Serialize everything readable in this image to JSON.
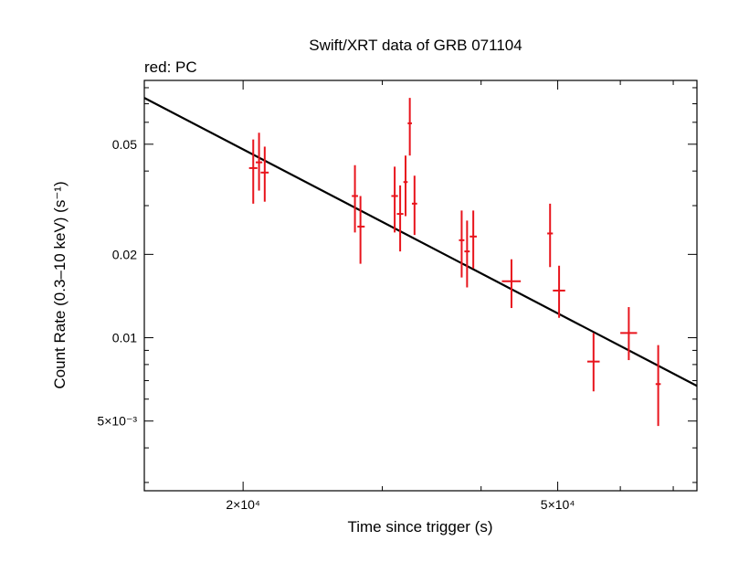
{
  "chart_data": {
    "type": "scatter",
    "title": "Swift/XRT data of GRB 071104",
    "subtitle": "red: PC",
    "xlabel": "Time since trigger (s)",
    "ylabel": "Count Rate (0.3–10 keV) (s⁻¹)",
    "x_scale": "log",
    "y_scale": "log",
    "xlim": [
      15000,
      75000
    ],
    "ylim": [
      0.0028,
      0.085
    ],
    "grid": false,
    "x_ticks": [
      {
        "value": 20000,
        "label": "2×10⁴"
      },
      {
        "value": 50000,
        "label": "5×10⁴"
      }
    ],
    "y_ticks": [
      {
        "value": 0.005,
        "label": "5×10⁻³"
      },
      {
        "value": 0.01,
        "label": "0.01"
      },
      {
        "value": 0.02,
        "label": "0.02"
      },
      {
        "value": 0.05,
        "label": "0.05"
      }
    ],
    "series": [
      {
        "color": "#e8141c",
        "points": [
          {
            "x": 20600,
            "xlo": 20350,
            "xhi": 20850,
            "y": 0.041,
            "ylo": 0.0305,
            "yhi": 0.052
          },
          {
            "x": 20950,
            "xlo": 20750,
            "xhi": 21150,
            "y": 0.043,
            "ylo": 0.034,
            "yhi": 0.055
          },
          {
            "x": 21300,
            "xlo": 21050,
            "xhi": 21550,
            "y": 0.0395,
            "ylo": 0.031,
            "yhi": 0.049
          },
          {
            "x": 27700,
            "xlo": 27450,
            "xhi": 27950,
            "y": 0.0325,
            "ylo": 0.024,
            "yhi": 0.042
          },
          {
            "x": 28150,
            "xlo": 27900,
            "xhi": 28500,
            "y": 0.0252,
            "ylo": 0.0185,
            "yhi": 0.0325
          },
          {
            "x": 31100,
            "xlo": 30800,
            "xhi": 31400,
            "y": 0.0325,
            "ylo": 0.024,
            "yhi": 0.0415
          },
          {
            "x": 31600,
            "xlo": 31300,
            "xhi": 31900,
            "y": 0.028,
            "ylo": 0.0205,
            "yhi": 0.0355
          },
          {
            "x": 32100,
            "xlo": 31900,
            "xhi": 32300,
            "y": 0.0365,
            "ylo": 0.0275,
            "yhi": 0.0455
          },
          {
            "x": 32500,
            "xlo": 32300,
            "xhi": 32700,
            "y": 0.0595,
            "ylo": 0.0455,
            "yhi": 0.0735
          },
          {
            "x": 32950,
            "xlo": 32700,
            "xhi": 33200,
            "y": 0.0305,
            "ylo": 0.0235,
            "yhi": 0.0385
          },
          {
            "x": 37800,
            "xlo": 37500,
            "xhi": 38100,
            "y": 0.0225,
            "ylo": 0.0165,
            "yhi": 0.0288
          },
          {
            "x": 38400,
            "xlo": 38100,
            "xhi": 38700,
            "y": 0.0205,
            "ylo": 0.0152,
            "yhi": 0.0265
          },
          {
            "x": 39100,
            "xlo": 38700,
            "xhi": 39500,
            "y": 0.0232,
            "ylo": 0.0178,
            "yhi": 0.0288
          },
          {
            "x": 43700,
            "xlo": 42500,
            "xhi": 44900,
            "y": 0.016,
            "ylo": 0.0128,
            "yhi": 0.0192
          },
          {
            "x": 48900,
            "xlo": 48500,
            "xhi": 49300,
            "y": 0.0238,
            "ylo": 0.018,
            "yhi": 0.0305
          },
          {
            "x": 50200,
            "xlo": 49300,
            "xhi": 51100,
            "y": 0.0148,
            "ylo": 0.0118,
            "yhi": 0.0182
          },
          {
            "x": 55500,
            "xlo": 54500,
            "xhi": 56500,
            "y": 0.0082,
            "ylo": 0.0064,
            "yhi": 0.0104
          },
          {
            "x": 61500,
            "xlo": 60000,
            "xhi": 63000,
            "y": 0.0104,
            "ylo": 0.0083,
            "yhi": 0.0129
          },
          {
            "x": 67000,
            "xlo": 66500,
            "xhi": 67500,
            "y": 0.0068,
            "ylo": 0.0048,
            "yhi": 0.0094
          }
        ]
      }
    ],
    "fit_line": {
      "color": "#000000",
      "points": [
        {
          "x": 15000,
          "y": 0.0735
        },
        {
          "x": 75000,
          "y": 0.0067
        }
      ]
    }
  }
}
